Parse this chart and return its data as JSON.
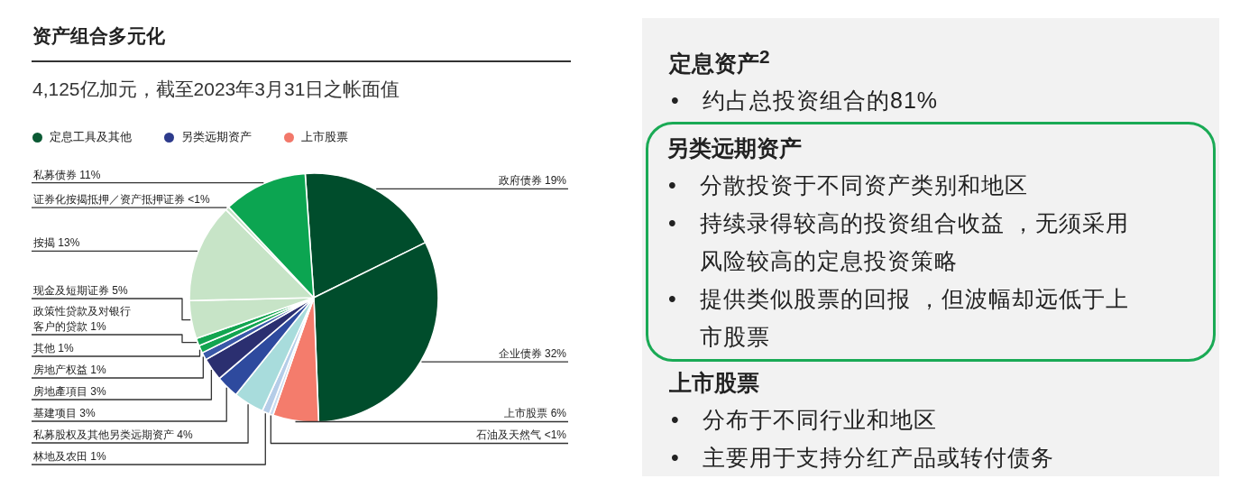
{
  "chart_data": [
    {
      "type": "pie",
      "title": "资产组合多元化",
      "subtitle": "4,125亿加元，截至2023年3月31日之帐面值",
      "categories": [
        "政府债券",
        "企业债券",
        "上市股票",
        "石油及天然气",
        "林地及农田",
        "私募股权及其他另类远期资产",
        "基建项目",
        "房地產項目",
        "房地产权益",
        "其他",
        "政策性贷款及对银行客户的贷款",
        "现金及短期证券",
        "按揭",
        "证券化按揭抵押／资产抵押证券",
        "私募债券"
      ],
      "annotations": [
        "定息工具及其他",
        "另类远期资产",
        "上市股票"
      ],
      "values": [
        19,
        32,
        6,
        0.5,
        1,
        4,
        3,
        3,
        1,
        1,
        1,
        5,
        13,
        0.5,
        11
      ],
      "value_labels": [
        "19%",
        "32%",
        "6%",
        "<1%",
        "1%",
        "4%",
        "3%",
        "3%",
        "1%",
        "1%",
        "1%",
        "5%",
        "13%",
        "<1%",
        "11%"
      ],
      "colors": [
        "#004d2c",
        "#004d2c",
        "#f47c6c",
        "#c9dcf0",
        "#b5cde8",
        "#a8dcdc",
        "#2e4a9e",
        "#2b2f70",
        "#3a58a8",
        "#12a550",
        "#12a550",
        "#c7e4c7",
        "#c7e4c7",
        "#c7e4c7",
        "#0ca551"
      ]
    },
    {
      "type": "other",
      "title": "定息资产$^{2}$",
      "annotations": [
        "• 约占总投资组合的81%"
      ]
    },
    {
      "type": "other",
      "title": "另类远期资产",
      "annotations": [
        "• 分散投资于不同资产类别和地区",
        "• 持续录得较高的投资组合收益 ，无须采用风险较高的定息投资策略",
        "• 提供类似股票的回报 ，但波幅却远低于上市股票"
      ]
    },
    {
      "type": "other",
      "title": "上市股票",
      "annotations": [
        "• 分布于不同行业和地区",
        "• 主要用于支持分红产品或转付债务"
      ]
    }
  ]
}
